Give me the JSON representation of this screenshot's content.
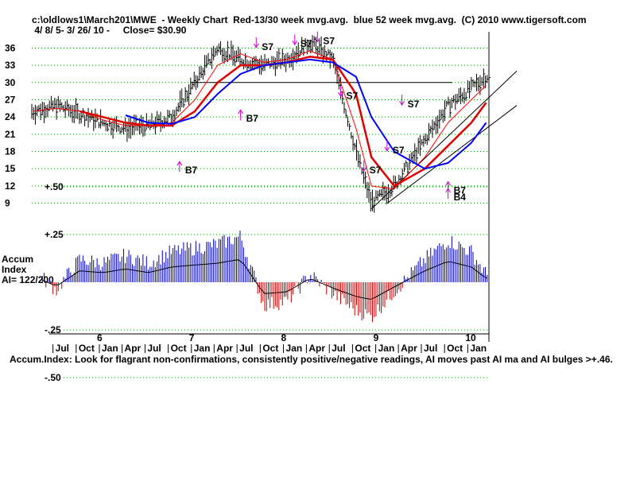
{
  "header": {
    "line1": "c:\\oldlows1\\March201\\MWE  - Weekly Chart  Red-13/30 week mvg.avg.  blue 52 week mvg.avg.  (C) 2010 www.tigersoft.com",
    "line2": " 4/ 8/ 5- 3/ 26/ 10 -     Close= $30.90"
  },
  "footer": "Accum.Index: Look for flagrant non-confirmations, consistently positive/negative readings, AI moves past AI ma and AI bulges >+.46.",
  "colors": {
    "price": "#000000",
    "ma13": "#ff0000",
    "ma30": "#e00000",
    "ma52": "#0000ff",
    "signal": "#d000d0",
    "ai_pos": "#0000c0",
    "ai_neg": "#c00000",
    "grid": "#00a000"
  },
  "chart_data": [
    {
      "type": "line",
      "title": "MWE - Weekly Chart",
      "x_axis": {
        "year_labels": [
          "6",
          "7",
          "8",
          "9",
          "10"
        ],
        "month_labels": [
          "Jul",
          "Oct",
          "Jan",
          "Apr",
          "Jul",
          "Oct",
          "Jan",
          "Apr",
          "Jul",
          "Oct",
          "Jan",
          "Apr",
          "Jul",
          "Oct",
          "Jan",
          "Apr",
          "Jul",
          "Oct",
          "Jan"
        ],
        "start": "2005-04-08",
        "end": "2010-03-26"
      },
      "y_ticks": [
        9,
        12,
        15,
        18,
        21,
        24,
        27,
        30,
        33,
        36
      ],
      "ylim": [
        7,
        38
      ],
      "grid": true,
      "x": [
        "2005-04",
        "2005-07",
        "2005-10",
        "2006-01",
        "2006-04",
        "2006-07",
        "2006-10",
        "2007-01",
        "2007-04",
        "2007-07",
        "2007-10",
        "2008-01",
        "2008-04",
        "2008-07",
        "2008-10",
        "2008-12",
        "2009-03",
        "2009-07",
        "2009-10",
        "2010-01",
        "2010-03"
      ],
      "series": [
        {
          "name": "Price",
          "values": [
            25,
            26,
            24.5,
            23,
            22,
            22.5,
            24,
            30,
            36,
            34,
            33,
            34,
            37,
            34,
            18,
            9,
            12,
            20,
            26,
            29,
            31
          ]
        },
        {
          "name": "13 week mvg.avg.",
          "values": [
            25,
            25.5,
            25,
            23.5,
            22.5,
            22.5,
            23,
            27,
            33,
            35,
            33.5,
            34,
            35.5,
            34,
            22,
            12,
            11.5,
            17,
            23,
            27,
            29.5
          ]
        },
        {
          "name": "30 week mvg.avg.",
          "values": [
            null,
            null,
            25,
            24,
            23,
            22.5,
            22.5,
            25,
            30,
            33,
            33,
            33.5,
            34.5,
            34,
            28,
            17,
            12,
            15,
            19,
            23,
            26.5
          ]
        },
        {
          "name": "52 week mvg.avg.",
          "values": [
            null,
            null,
            null,
            null,
            24.3,
            23,
            22.8,
            24,
            28,
            31.5,
            33,
            33.5,
            34,
            33.5,
            31,
            24,
            18,
            15,
            16,
            19.5,
            23
          ]
        }
      ],
      "annotations": [
        {
          "label": "B7",
          "x": "2006-11",
          "y": 15
        },
        {
          "label": "B7",
          "x": "2007-07",
          "y": 24
        },
        {
          "label": "S7",
          "x": "2007-09",
          "y": 36.5
        },
        {
          "label": "S7",
          "x": "2008-02",
          "y": 37
        },
        {
          "label": "S7",
          "x": "2008-05",
          "y": 37.5
        },
        {
          "label": "S7",
          "x": "2008-08",
          "y": 28
        },
        {
          "label": "S7",
          "x": "2008-11",
          "y": 15
        },
        {
          "label": "S7",
          "x": "2009-02",
          "y": 18.5
        },
        {
          "label": "S7",
          "x": "2009-04",
          "y": 26.5
        },
        {
          "label": "B7",
          "x": "2009-10",
          "y": 11.5
        },
        {
          "label": "B4",
          "x": "2009-10",
          "y": 10.3
        }
      ],
      "horizontal_line": 30
    },
    {
      "type": "bar",
      "title": "Accum Index",
      "label_lines": [
        "Accum",
        "Index",
        "AI= 122/200"
      ],
      "y_ticks": [
        "+.50",
        "+.25",
        "-.25",
        "-.50"
      ],
      "ylim": [
        -0.55,
        0.55
      ],
      "x": [
        "2005-04",
        "2005-07",
        "2005-10",
        "2006-01",
        "2006-04",
        "2006-07",
        "2006-10",
        "2007-01",
        "2007-04",
        "2007-07",
        "2007-10",
        "2008-01",
        "2008-04",
        "2008-07",
        "2008-10",
        "2008-12",
        "2009-03",
        "2009-07",
        "2009-10",
        "2010-01",
        "2010-03"
      ],
      "values": [
        0.06,
        -0.04,
        0.12,
        0.1,
        0.14,
        0.1,
        0.16,
        0.18,
        0.2,
        0.24,
        -0.12,
        -0.1,
        0.04,
        -0.06,
        -0.15,
        -0.18,
        -0.05,
        0.12,
        0.22,
        0.16,
        0.04
      ]
    }
  ]
}
